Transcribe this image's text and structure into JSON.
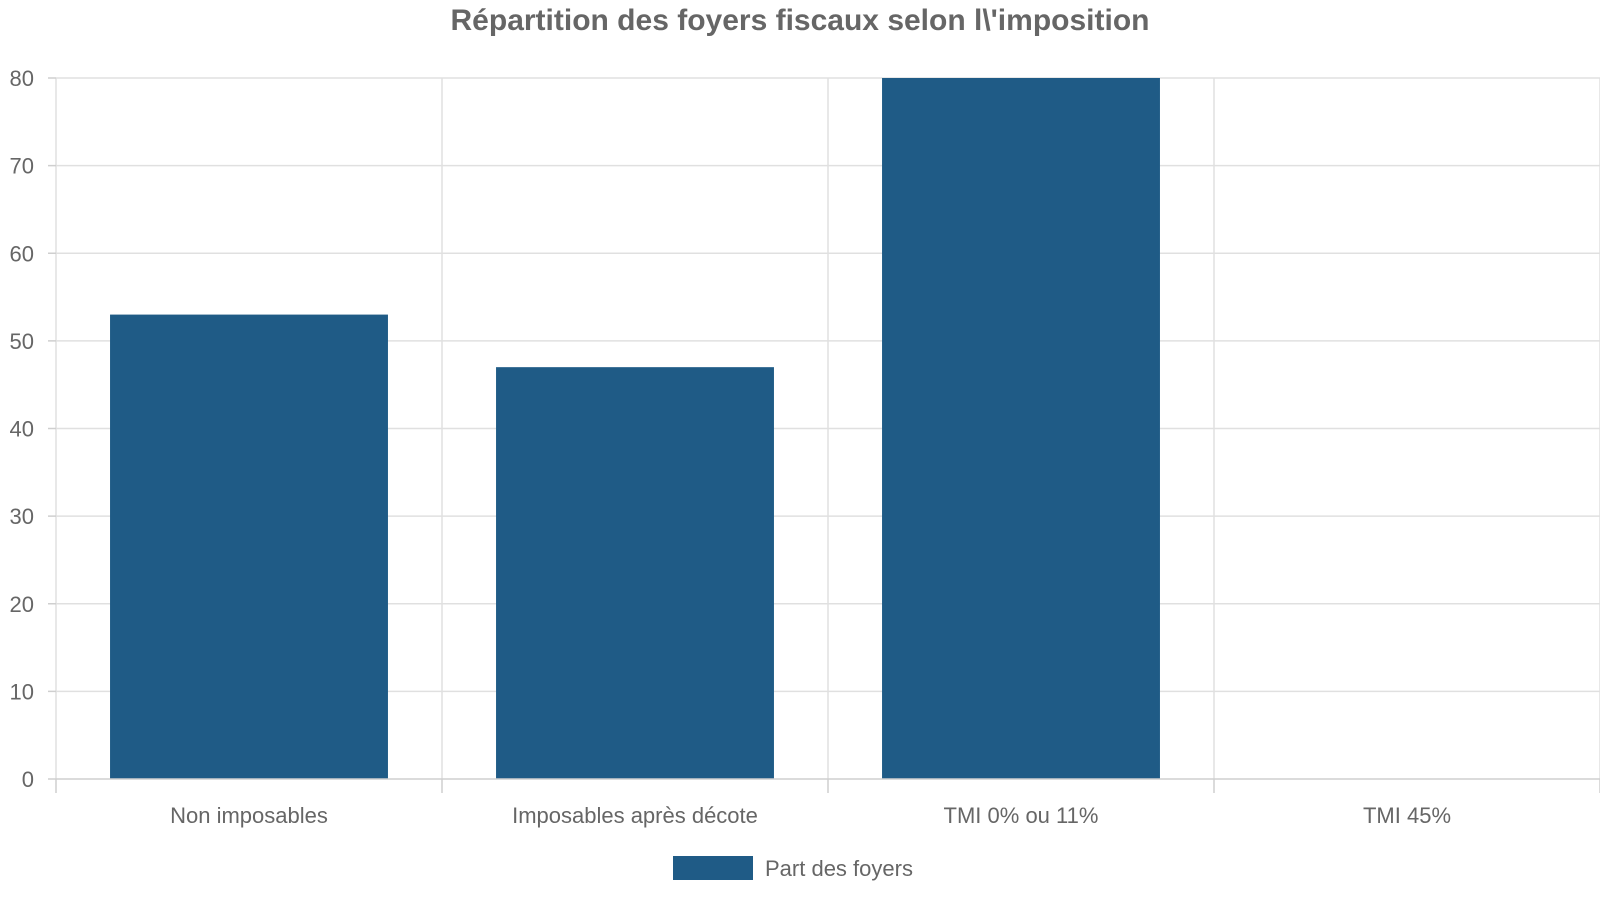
{
  "chart_data": {
    "type": "bar",
    "title": "Répartition des foyers fiscaux selon l\\'imposition",
    "categories": [
      "Non imposables",
      "Imposables après décote",
      "TMI 0% ou 11%",
      "TMI 45%"
    ],
    "series": [
      {
        "name": "Part des foyers",
        "values": [
          53,
          47,
          80,
          0
        ],
        "color": "#1f5b86"
      }
    ],
    "xlabel": "",
    "ylabel": "",
    "ylim": [
      0,
      80
    ],
    "yticks": [
      0,
      10,
      20,
      30,
      40,
      50,
      60,
      70,
      80
    ],
    "grid": true,
    "legend_position": "bottom-center"
  }
}
